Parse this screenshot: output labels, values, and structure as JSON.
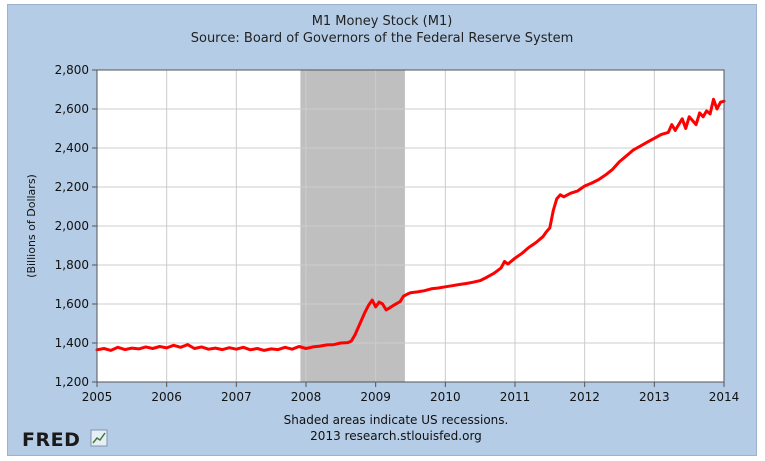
{
  "chart_data": {
    "type": "line",
    "title": "M1 Money Stock (M1)",
    "subtitle": "Source: Board of Governors of the Federal Reserve System",
    "ylabel": "(Billions of Dollars)",
    "xlabel": "",
    "xlim": [
      2005,
      2014
    ],
    "ylim": [
      1200,
      2800
    ],
    "x_ticks": [
      "2005",
      "2006",
      "2007",
      "2008",
      "2009",
      "2010",
      "2011",
      "2012",
      "2013",
      "2014"
    ],
    "y_ticks": [
      "1,200",
      "1,400",
      "1,600",
      "1,800",
      "2,000",
      "2,200",
      "2,400",
      "2,600",
      "2,800"
    ],
    "grid": true,
    "line_color": "#ff0000",
    "recession_color": "#bfbfbf",
    "recessions": [
      [
        2007.92,
        2009.42
      ]
    ],
    "series": [
      {
        "name": "",
        "points": [
          [
            2005.0,
            1365
          ],
          [
            2005.1,
            1372
          ],
          [
            2005.2,
            1362
          ],
          [
            2005.3,
            1378
          ],
          [
            2005.4,
            1366
          ],
          [
            2005.5,
            1374
          ],
          [
            2005.6,
            1370
          ],
          [
            2005.7,
            1380
          ],
          [
            2005.8,
            1372
          ],
          [
            2005.9,
            1382
          ],
          [
            2006.0,
            1375
          ],
          [
            2006.1,
            1388
          ],
          [
            2006.2,
            1378
          ],
          [
            2006.3,
            1392
          ],
          [
            2006.4,
            1372
          ],
          [
            2006.5,
            1380
          ],
          [
            2006.6,
            1368
          ],
          [
            2006.7,
            1374
          ],
          [
            2006.8,
            1366
          ],
          [
            2006.9,
            1376
          ],
          [
            2007.0,
            1368
          ],
          [
            2007.1,
            1378
          ],
          [
            2007.2,
            1365
          ],
          [
            2007.3,
            1372
          ],
          [
            2007.4,
            1362
          ],
          [
            2007.5,
            1370
          ],
          [
            2007.6,
            1366
          ],
          [
            2007.7,
            1378
          ],
          [
            2007.8,
            1368
          ],
          [
            2007.9,
            1382
          ],
          [
            2008.0,
            1372
          ],
          [
            2008.1,
            1380
          ],
          [
            2008.2,
            1384
          ],
          [
            2008.3,
            1390
          ],
          [
            2008.4,
            1392
          ],
          [
            2008.5,
            1400
          ],
          [
            2008.6,
            1402
          ],
          [
            2008.65,
            1410
          ],
          [
            2008.7,
            1440
          ],
          [
            2008.75,
            1480
          ],
          [
            2008.8,
            1520
          ],
          [
            2008.85,
            1560
          ],
          [
            2008.9,
            1595
          ],
          [
            2008.95,
            1620
          ],
          [
            2009.0,
            1585
          ],
          [
            2009.05,
            1610
          ],
          [
            2009.1,
            1600
          ],
          [
            2009.15,
            1570
          ],
          [
            2009.2,
            1580
          ],
          [
            2009.25,
            1592
          ],
          [
            2009.3,
            1602
          ],
          [
            2009.35,
            1612
          ],
          [
            2009.4,
            1640
          ],
          [
            2009.45,
            1650
          ],
          [
            2009.5,
            1658
          ],
          [
            2009.6,
            1662
          ],
          [
            2009.7,
            1668
          ],
          [
            2009.8,
            1678
          ],
          [
            2009.9,
            1682
          ],
          [
            2010.0,
            1688
          ],
          [
            2010.1,
            1694
          ],
          [
            2010.2,
            1700
          ],
          [
            2010.3,
            1705
          ],
          [
            2010.4,
            1712
          ],
          [
            2010.5,
            1720
          ],
          [
            2010.6,
            1738
          ],
          [
            2010.7,
            1758
          ],
          [
            2010.8,
            1785
          ],
          [
            2010.85,
            1818
          ],
          [
            2010.9,
            1805
          ],
          [
            2011.0,
            1835
          ],
          [
            2011.1,
            1860
          ],
          [
            2011.2,
            1890
          ],
          [
            2011.3,
            1915
          ],
          [
            2011.4,
            1945
          ],
          [
            2011.45,
            1970
          ],
          [
            2011.5,
            1990
          ],
          [
            2011.55,
            2080
          ],
          [
            2011.6,
            2140
          ],
          [
            2011.65,
            2160
          ],
          [
            2011.7,
            2150
          ],
          [
            2011.8,
            2168
          ],
          [
            2011.9,
            2180
          ],
          [
            2012.0,
            2205
          ],
          [
            2012.1,
            2220
          ],
          [
            2012.2,
            2238
          ],
          [
            2012.3,
            2262
          ],
          [
            2012.4,
            2290
          ],
          [
            2012.5,
            2330
          ],
          [
            2012.6,
            2360
          ],
          [
            2012.7,
            2390
          ],
          [
            2012.8,
            2410
          ],
          [
            2012.9,
            2430
          ],
          [
            2013.0,
            2450
          ],
          [
            2013.1,
            2470
          ],
          [
            2013.2,
            2480
          ],
          [
            2013.25,
            2520
          ],
          [
            2013.3,
            2490
          ],
          [
            2013.4,
            2550
          ],
          [
            2013.45,
            2500
          ],
          [
            2013.5,
            2560
          ],
          [
            2013.6,
            2520
          ],
          [
            2013.65,
            2580
          ],
          [
            2013.7,
            2560
          ],
          [
            2013.75,
            2590
          ],
          [
            2013.8,
            2575
          ],
          [
            2013.85,
            2650
          ],
          [
            2013.9,
            2600
          ],
          [
            2013.95,
            2635
          ],
          [
            2014.0,
            2640
          ]
        ]
      }
    ],
    "footer_line1": "Shaded areas indicate US recessions.",
    "footer_line2": "2013 research.stlouisfed.org",
    "logo_text": "FRED"
  }
}
